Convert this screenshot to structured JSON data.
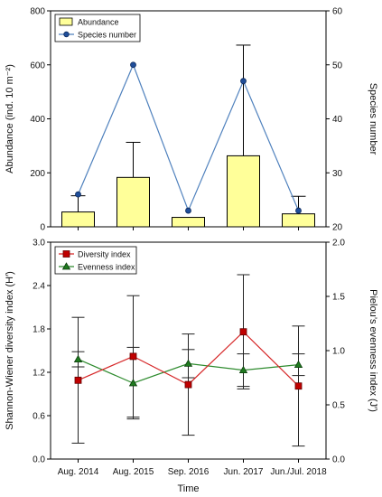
{
  "chart_data": [
    {
      "type": "bar",
      "categories": [
        "Aug. 2014",
        "Aug. 2015",
        "Sep. 2016",
        "Jun. 2017",
        "Jun./Jul. 2018"
      ],
      "ylabel": "Abundance (ind. 10 m⁻²)",
      "ylabel_right": "Species number",
      "ylim": [
        0,
        800
      ],
      "ylim_right": [
        20,
        60
      ],
      "yticks": [
        "0",
        "200",
        "400",
        "600",
        "800"
      ],
      "yticks_right": [
        "20",
        "30",
        "40",
        "50",
        "60"
      ],
      "legend_position": "top-left",
      "grid": false,
      "series": [
        {
          "name": "Abundance",
          "type": "bar",
          "axis": "left",
          "values": [
            55,
            183,
            35,
            263,
            48
          ],
          "error": [
            60,
            130,
            0,
            410,
            65
          ],
          "color": "#ffff99"
        },
        {
          "name": "Species number",
          "type": "line",
          "axis": "right",
          "values": [
            26,
            50,
            23,
            47,
            23
          ],
          "color": "#4f81bd"
        }
      ]
    },
    {
      "type": "line",
      "categories": [
        "Aug. 2014",
        "Aug. 2015",
        "Sep. 2016",
        "Jun. 2017",
        "Jun./Jul. 2018"
      ],
      "xlabel": "Time",
      "ylabel": "Shannon-Wiener diversity index (H′)",
      "ylabel_right": "Pielou’s evenness index (J′)",
      "ylim": [
        0,
        3.0
      ],
      "ylim_right": [
        0,
        2.0
      ],
      "yticks": [
        "0.0",
        "0.6",
        "1.2",
        "1.8",
        "2.4",
        "3.0"
      ],
      "yticks_right": [
        "0.0",
        "0.5",
        "1.0",
        "1.5",
        "2.0"
      ],
      "legend_position": "top-left",
      "grid": false,
      "series": [
        {
          "name": "Diversity index",
          "axis": "left",
          "values": [
            1.09,
            1.42,
            1.03,
            1.76,
            1.01
          ],
          "error": [
            0.87,
            0.84,
            0.7,
            0.79,
            0.83
          ],
          "color": "#d62728"
        },
        {
          "name": "Evenness index",
          "axis": "right",
          "values": [
            0.92,
            0.7,
            0.88,
            0.82,
            0.87
          ],
          "error": [
            0.07,
            0.33,
            0.13,
            0.15,
            0.1
          ],
          "color": "#2e8b2e"
        }
      ]
    }
  ]
}
